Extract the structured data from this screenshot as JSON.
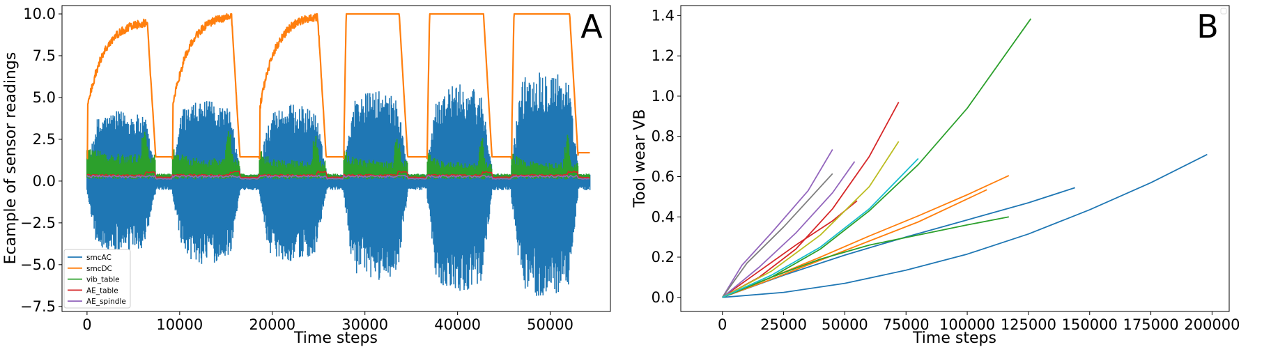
{
  "chart_data": [
    {
      "type": "line",
      "panel_label": "A",
      "xlabel": "Time steps",
      "ylabel": "Ecample of sensor readings",
      "xlim": [
        -2700,
        56500
      ],
      "ylim": [
        -7.8,
        10.5
      ],
      "xticks": [
        0,
        10000,
        20000,
        30000,
        40000,
        50000
      ],
      "xtick_labels": [
        "0",
        "10000",
        "20000",
        "30000",
        "40000",
        "50000"
      ],
      "yticks": [
        -7.5,
        -5.0,
        -2.5,
        0.0,
        2.5,
        5.0,
        7.5,
        10.0
      ],
      "ytick_labels": [
        "−7.5",
        "−5.0",
        "−2.5",
        "0.0",
        "2.5",
        "5.0",
        "7.5",
        "10.0"
      ],
      "grid": false,
      "legend_position": "lower-left",
      "runs": [
        {
          "start": 0,
          "end": 7400,
          "dc_shape": "rising",
          "dc_peak": 9.6,
          "ac_pos": 4.2,
          "ac_neg": -4.4,
          "vib": 1.3
        },
        {
          "start": 9200,
          "end": 16500,
          "dc_shape": "rising",
          "dc_peak": 10.0,
          "ac_pos": 4.8,
          "ac_neg": -5.0,
          "vib": 1.1
        },
        {
          "start": 18600,
          "end": 25800,
          "dc_shape": "rising",
          "dc_peak": 10.0,
          "ac_pos": 4.6,
          "ac_neg": -4.8,
          "vib": 1.0
        },
        {
          "start": 27700,
          "end": 34600,
          "dc_shape": "flat",
          "dc_peak": 10.0,
          "ac_pos": 5.4,
          "ac_neg": -6.0,
          "vib": 1.0
        },
        {
          "start": 36700,
          "end": 43700,
          "dc_shape": "flat",
          "dc_peak": 10.0,
          "ac_pos": 5.8,
          "ac_neg": -6.6,
          "vib": 0.9
        },
        {
          "start": 45800,
          "end": 53000,
          "dc_shape": "flat",
          "dc_peak": 10.0,
          "ac_pos": 6.8,
          "ac_neg": -7.0,
          "vib": 0.9
        }
      ],
      "series": [
        {
          "name": "smcAC",
          "color": "#1f77b4"
        },
        {
          "name": "smcDC",
          "color": "#ff7f0e"
        },
        {
          "name": "vib_table",
          "color": "#2ca02c"
        },
        {
          "name": "AE_table",
          "color": "#d62728"
        },
        {
          "name": "AE_spindle",
          "color": "#9467bd"
        }
      ]
    },
    {
      "type": "line",
      "panel_label": "B",
      "xlabel": "Time steps",
      "ylabel": "Tool wear VB",
      "xlim": [
        -17000,
        207000
      ],
      "ylim": [
        -0.07,
        1.45
      ],
      "xticks": [
        0,
        25000,
        50000,
        75000,
        100000,
        125000,
        150000,
        175000,
        200000
      ],
      "xtick_labels": [
        "0",
        "25000",
        "50000",
        "75000",
        "100000",
        "125000",
        "150000",
        "175000",
        "200000"
      ],
      "yticks": [
        0.0,
        0.2,
        0.4,
        0.6,
        0.8,
        1.0,
        1.2,
        1.4
      ],
      "ytick_labels": [
        "0.0",
        "0.2",
        "0.4",
        "0.6",
        "0.8",
        "1.0",
        "1.2",
        "1.4"
      ],
      "grid": false,
      "series": [
        {
          "color": "#1f77b4",
          "x": [
            0,
            25000,
            50000,
            75000,
            100000,
            125000,
            150000,
            175000,
            198000
          ],
          "y": [
            0,
            0.025,
            0.07,
            0.135,
            0.215,
            0.315,
            0.435,
            0.57,
            0.71
          ]
        },
        {
          "color": "#1f77b4",
          "x": [
            0,
            25000,
            50000,
            75000,
            100000,
            125000,
            144000
          ],
          "y": [
            0,
            0.11,
            0.21,
            0.3,
            0.385,
            0.47,
            0.545
          ]
        },
        {
          "color": "#ff7f0e",
          "x": [
            0,
            20000,
            40000,
            60000,
            80000,
            100000,
            117000
          ],
          "y": [
            0,
            0.1,
            0.2,
            0.305,
            0.405,
            0.51,
            0.605
          ]
        },
        {
          "color": "#ff7f0e",
          "x": [
            0,
            20000,
            40000,
            60000,
            80000,
            108000
          ],
          "y": [
            0,
            0.09,
            0.185,
            0.28,
            0.375,
            0.535
          ]
        },
        {
          "color": "#2ca02c",
          "x": [
            0,
            20000,
            40000,
            60000,
            80000,
            100000,
            117000
          ],
          "y": [
            0,
            0.1,
            0.19,
            0.26,
            0.31,
            0.36,
            0.4
          ]
        },
        {
          "color": "#2ca02c",
          "x": [
            0,
            20000,
            40000,
            60000,
            80000,
            100000,
            126000
          ],
          "y": [
            0,
            0.1,
            0.24,
            0.43,
            0.66,
            0.94,
            1.385
          ]
        },
        {
          "color": "#d62728",
          "x": [
            0,
            15000,
            30000,
            45000,
            55000
          ],
          "y": [
            0,
            0.13,
            0.26,
            0.38,
            0.48
          ]
        },
        {
          "color": "#d62728",
          "x": [
            0,
            15000,
            30000,
            45000,
            60000,
            72000
          ],
          "y": [
            0,
            0.1,
            0.24,
            0.44,
            0.7,
            0.97
          ]
        },
        {
          "color": "#9467bd",
          "x": [
            0,
            8000,
            20000,
            35000,
            45000
          ],
          "y": [
            0,
            0.16,
            0.32,
            0.53,
            0.735
          ]
        },
        {
          "color": "#9467bd",
          "x": [
            0,
            15000,
            30000,
            45000,
            54000
          ],
          "y": [
            0,
            0.15,
            0.32,
            0.52,
            0.675
          ]
        },
        {
          "color": "#7f7f7f",
          "x": [
            0,
            10000,
            25000,
            45000
          ],
          "y": [
            0,
            0.17,
            0.35,
            0.615
          ]
        },
        {
          "color": "#bcbd22",
          "x": [
            0,
            20000,
            40000,
            60000,
            72000
          ],
          "y": [
            0,
            0.13,
            0.31,
            0.55,
            0.775
          ]
        },
        {
          "color": "#17becf",
          "x": [
            0,
            20000,
            40000,
            60000,
            80000
          ],
          "y": [
            0,
            0.11,
            0.25,
            0.44,
            0.69
          ]
        }
      ]
    }
  ]
}
